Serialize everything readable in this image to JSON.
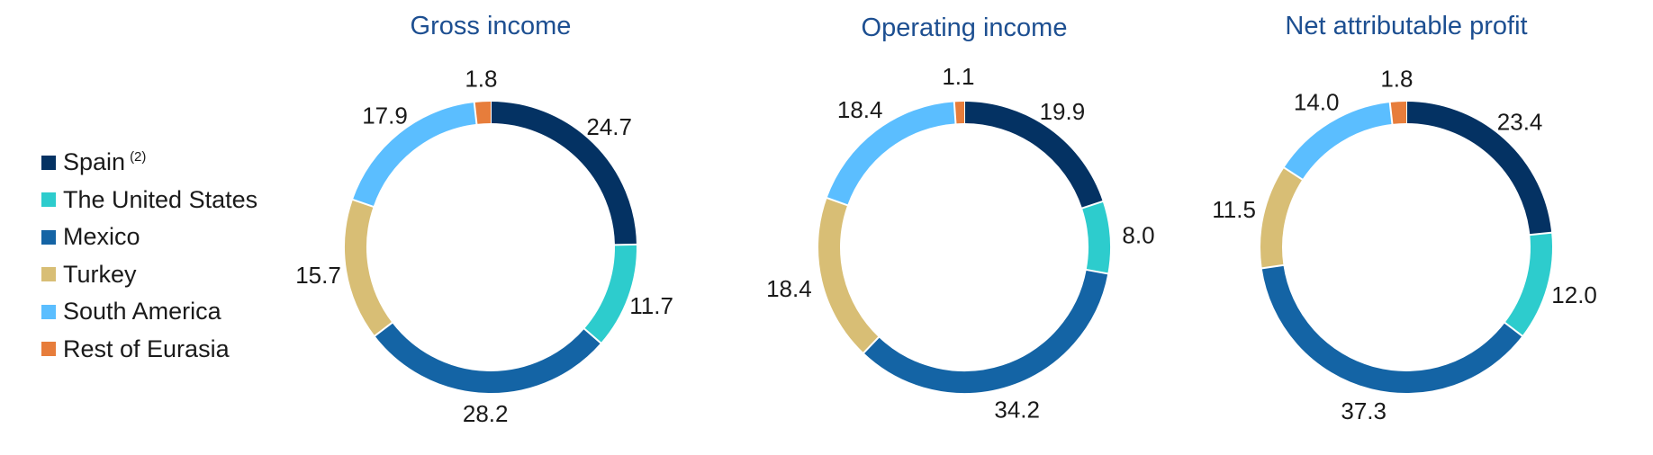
{
  "legend": {
    "items": [
      {
        "label": "Spain",
        "note": "(2)",
        "color": "#043263"
      },
      {
        "label": "The United States",
        "note": "",
        "color": "#2dcccd"
      },
      {
        "label": "Mexico",
        "note": "",
        "color": "#1464a5"
      },
      {
        "label": "Turkey",
        "note": "",
        "color": "#d8be75"
      },
      {
        "label": "South America",
        "note": "",
        "color": "#5bbeff"
      },
      {
        "label": "Rest of Eurasia",
        "note": "",
        "color": "#e77d3b"
      }
    ]
  },
  "chart_data": [
    {
      "type": "pie",
      "title": "Gross income",
      "categories": [
        "Spain",
        "The United States",
        "Mexico",
        "Turkey",
        "South America",
        "Rest of Eurasia"
      ],
      "values": [
        24.7,
        11.7,
        28.2,
        15.7,
        17.9,
        1.8
      ],
      "labels": [
        "24.7",
        "11.7",
        "28.2",
        "15.7",
        "17.9",
        "1.8"
      ],
      "colors": [
        "#043263",
        "#2dcccd",
        "#1464a5",
        "#d8be75",
        "#5bbeff",
        "#e77d3b"
      ]
    },
    {
      "type": "pie",
      "title": "Operating income",
      "categories": [
        "Spain",
        "The United States",
        "Mexico",
        "Turkey",
        "South America",
        "Rest of Eurasia"
      ],
      "values": [
        19.9,
        8.0,
        34.2,
        18.4,
        18.4,
        1.1
      ],
      "labels": [
        "19.9",
        "8.0",
        "34.2",
        "18.4",
        "18.4",
        "1.1"
      ],
      "colors": [
        "#043263",
        "#2dcccd",
        "#1464a5",
        "#d8be75",
        "#5bbeff",
        "#e77d3b"
      ]
    },
    {
      "type": "pie",
      "title": "Net attributable profit",
      "categories": [
        "Spain",
        "The United States",
        "Mexico",
        "Turkey",
        "South America",
        "Rest of Eurasia"
      ],
      "values": [
        23.4,
        12.0,
        37.3,
        11.5,
        14.0,
        1.8
      ],
      "labels": [
        "23.4",
        "12.0",
        "37.3",
        "11.5",
        "14.0",
        "1.8"
      ],
      "colors": [
        "#043263",
        "#2dcccd",
        "#1464a5",
        "#d8be75",
        "#5bbeff",
        "#e77d3b"
      ]
    }
  ]
}
